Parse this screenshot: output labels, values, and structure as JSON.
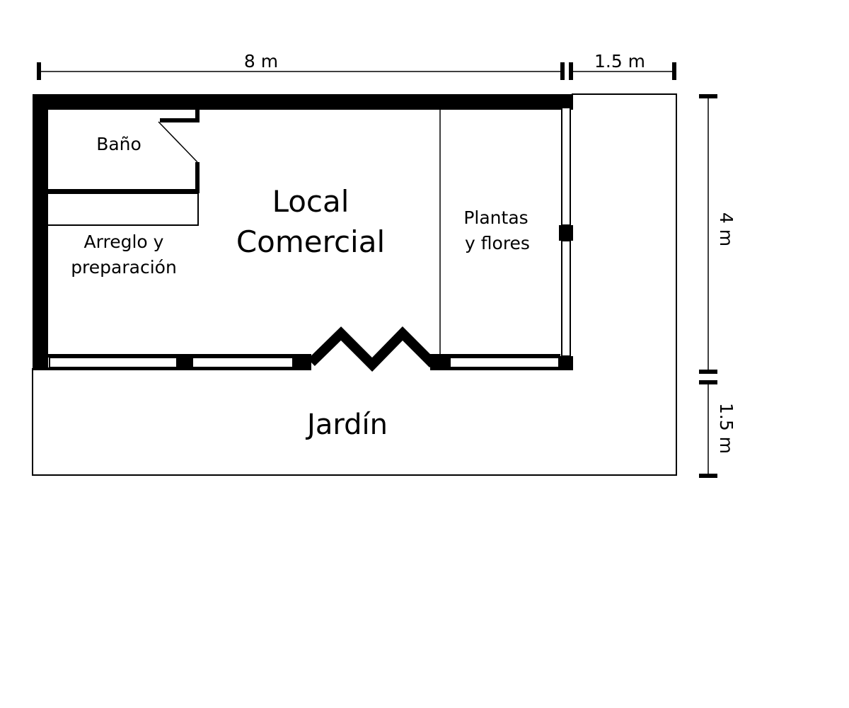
{
  "dimensions": {
    "top_main": "8 m",
    "top_extra": "1.5 m",
    "right_main": "4 m",
    "right_extra": "1.5 m"
  },
  "rooms": {
    "bathroom": "Baño",
    "prep_line1": "Arreglo y",
    "prep_line2": "preparación",
    "main_line1": "Local",
    "main_line2": "Comercial",
    "plants_line1": "Plantas",
    "plants_line2": "y flores",
    "garden": "Jardín"
  },
  "colors": {
    "wall": "#000000",
    "background": "#ffffff"
  }
}
